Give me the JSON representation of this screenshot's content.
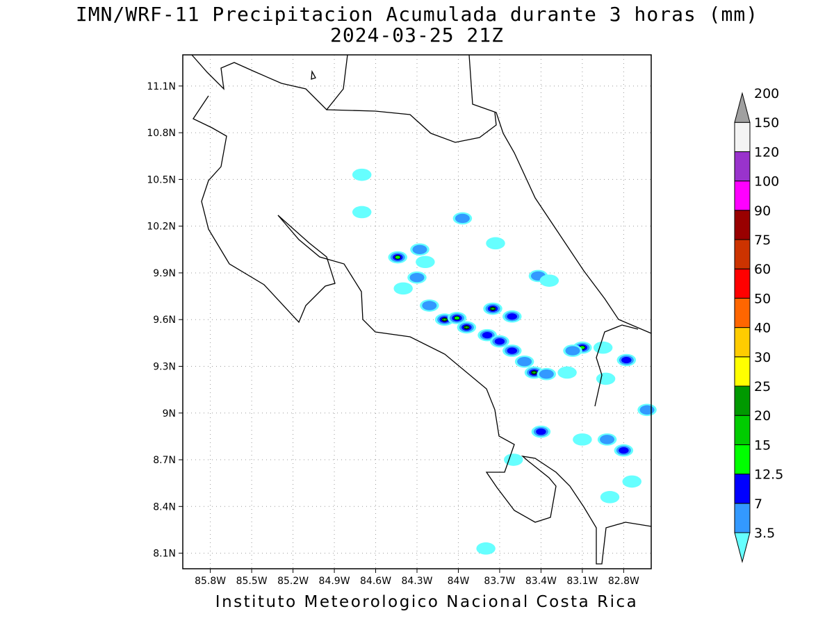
{
  "header": {
    "title": "IMN/WRF-11 Precipitacion Acumulada durante 3 horas (mm)",
    "subtitle": "2024-03-25 21Z"
  },
  "footer": {
    "credit": "Instituto Meteorologico Nacional Costa Rica"
  },
  "map": {
    "lon_range": [
      -86.0,
      -82.6
    ],
    "lat_range": [
      8.0,
      11.3
    ],
    "lon_ticks": [
      "85.8W",
      "85.5W",
      "85.2W",
      "84.9W",
      "84.6W",
      "84.3W",
      "84W",
      "83.7W",
      "83.4W",
      "83.1W",
      "82.8W"
    ],
    "lat_ticks": [
      "11.1N",
      "10.8N",
      "10.5N",
      "10.2N",
      "9.9N",
      "9.6N",
      "9.3N",
      "9N",
      "8.7N",
      "8.4N",
      "8.1N"
    ],
    "grid": "dotted",
    "coastline_color": "#000000"
  },
  "colorbar": {
    "levels": [
      {
        "label": "3.5",
        "color": "#66ffff"
      },
      {
        "label": "7",
        "color": "#3399ff"
      },
      {
        "label": "12.5",
        "color": "#0000ff"
      },
      {
        "label": "15",
        "color": "#00ff00"
      },
      {
        "label": "20",
        "color": "#00cc00"
      },
      {
        "label": "25",
        "color": "#009900"
      },
      {
        "label": "30",
        "color": "#ffff00"
      },
      {
        "label": "40",
        "color": "#ffcc00"
      },
      {
        "label": "50",
        "color": "#ff6600"
      },
      {
        "label": "60",
        "color": "#ff0000"
      },
      {
        "label": "75",
        "color": "#cc3300"
      },
      {
        "label": "90",
        "color": "#990000"
      },
      {
        "label": "100",
        "color": "#ff00ff"
      },
      {
        "label": "120",
        "color": "#9933cc"
      },
      {
        "label": "150",
        "color": "#f4f4f4"
      },
      {
        "label": "200",
        "color": "#a0a0a0"
      }
    ]
  },
  "precip_cells": [
    {
      "lon": -84.7,
      "lat": 10.53,
      "level": 0
    },
    {
      "lon": -84.7,
      "lat": 10.29,
      "level": 0
    },
    {
      "lon": -83.97,
      "lat": 10.25,
      "level": 1
    },
    {
      "lon": -83.73,
      "lat": 10.09,
      "level": 0
    },
    {
      "lon": -84.44,
      "lat": 10.0,
      "level": 3
    },
    {
      "lon": -84.28,
      "lat": 10.05,
      "level": 1
    },
    {
      "lon": -84.24,
      "lat": 9.97,
      "level": 0
    },
    {
      "lon": -84.3,
      "lat": 9.87,
      "level": 1
    },
    {
      "lon": -84.4,
      "lat": 9.8,
      "level": 0
    },
    {
      "lon": -83.42,
      "lat": 9.88,
      "level": 1
    },
    {
      "lon": -83.34,
      "lat": 9.85,
      "level": 0
    },
    {
      "lon": -84.21,
      "lat": 9.69,
      "level": 1
    },
    {
      "lon": -84.1,
      "lat": 9.6,
      "level": 4
    },
    {
      "lon": -84.01,
      "lat": 9.61,
      "level": 3
    },
    {
      "lon": -83.94,
      "lat": 9.55,
      "level": 4
    },
    {
      "lon": -83.75,
      "lat": 9.67,
      "level": 4
    },
    {
      "lon": -83.79,
      "lat": 9.5,
      "level": 2
    },
    {
      "lon": -83.61,
      "lat": 9.62,
      "level": 2
    },
    {
      "lon": -83.7,
      "lat": 9.46,
      "level": 2
    },
    {
      "lon": -83.61,
      "lat": 9.4,
      "level": 2
    },
    {
      "lon": -83.52,
      "lat": 9.33,
      "level": 1
    },
    {
      "lon": -83.45,
      "lat": 9.26,
      "level": 4
    },
    {
      "lon": -83.36,
      "lat": 9.25,
      "level": 1
    },
    {
      "lon": -83.21,
      "lat": 9.26,
      "level": 0
    },
    {
      "lon": -83.1,
      "lat": 9.42,
      "level": 3
    },
    {
      "lon": -83.17,
      "lat": 9.4,
      "level": 1
    },
    {
      "lon": -82.95,
      "lat": 9.42,
      "level": 0
    },
    {
      "lon": -82.78,
      "lat": 9.34,
      "level": 2
    },
    {
      "lon": -82.93,
      "lat": 9.22,
      "level": 0
    },
    {
      "lon": -83.4,
      "lat": 8.88,
      "level": 2
    },
    {
      "lon": -83.1,
      "lat": 8.83,
      "level": 0
    },
    {
      "lon": -82.92,
      "lat": 8.83,
      "level": 1
    },
    {
      "lon": -82.8,
      "lat": 8.76,
      "level": 2
    },
    {
      "lon": -82.63,
      "lat": 9.02,
      "level": 1
    },
    {
      "lon": -82.74,
      "lat": 8.56,
      "level": 0
    },
    {
      "lon": -82.9,
      "lat": 8.46,
      "level": 0
    },
    {
      "lon": -83.6,
      "lat": 8.7,
      "level": 0
    },
    {
      "lon": -83.8,
      "lat": 8.13,
      "level": 0
    }
  ]
}
